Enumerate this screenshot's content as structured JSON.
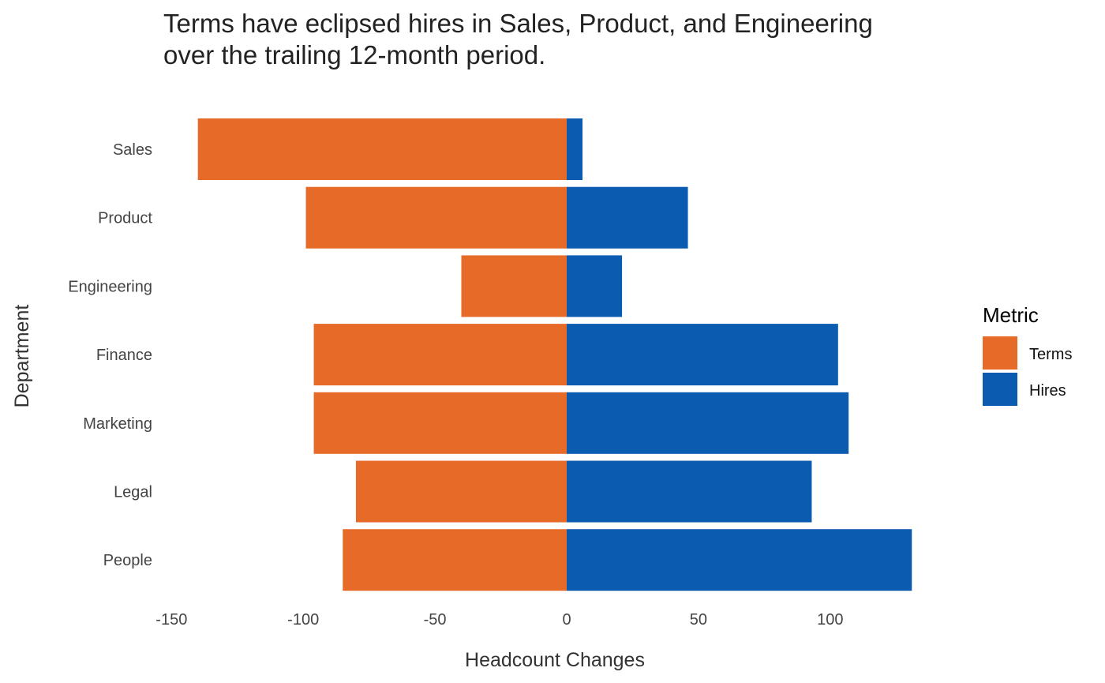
{
  "chart_data": {
    "type": "bar",
    "orientation": "horizontal",
    "title": "Terms have eclipsed hires in Sales, Product, and Engineering",
    "subtitle": "over the trailing 12-month period.",
    "xlabel": "Headcount Changes",
    "ylabel": "Department",
    "categories": [
      "Sales",
      "Product",
      "Engineering",
      "Finance",
      "Marketing",
      "Legal",
      "People"
    ],
    "series": [
      {
        "name": "Terms",
        "color": "#E66A28",
        "values": [
          -140,
          -99,
          -40,
          -96,
          -96,
          -80,
          -85
        ]
      },
      {
        "name": "Hires",
        "color": "#0B5CB1",
        "values": [
          6,
          46,
          21,
          103,
          107,
          93,
          131
        ]
      }
    ],
    "xlim": [
      -150,
      131
    ],
    "xticks": [
      -150,
      -100,
      -50,
      0,
      50,
      100
    ],
    "xtick_labels": [
      "-150",
      "-100",
      "-50",
      "0",
      "50",
      "100"
    ],
    "grid": false,
    "legend": {
      "title": "Metric",
      "position": "right"
    }
  }
}
